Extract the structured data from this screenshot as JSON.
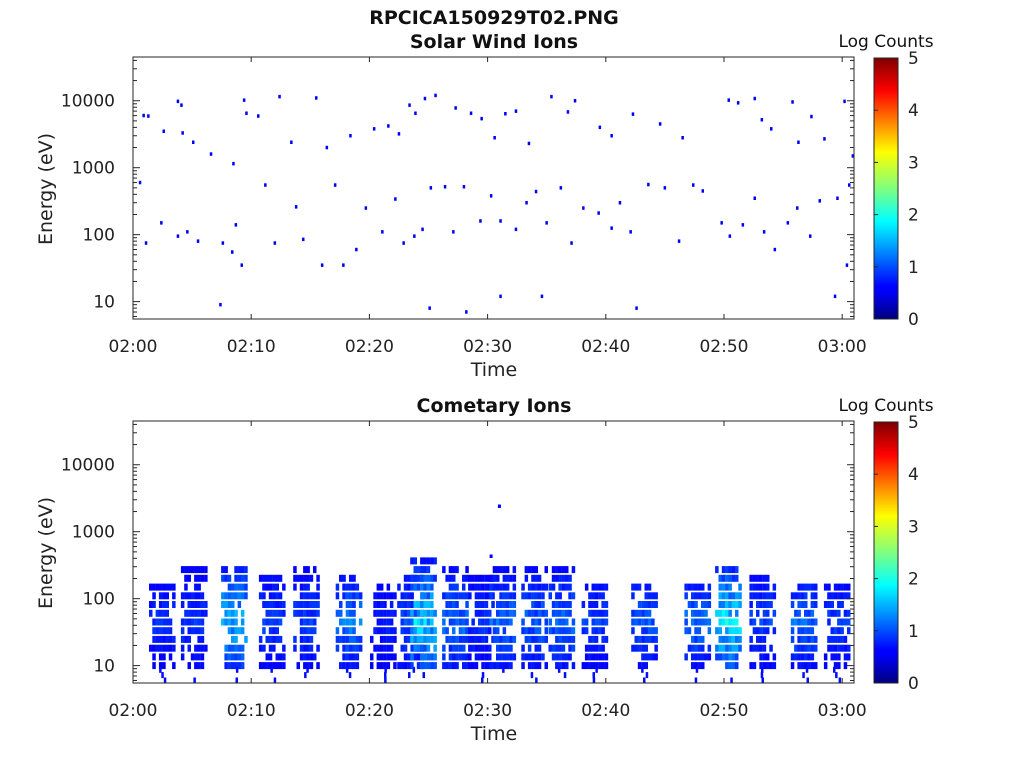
{
  "figure": {
    "filename_title": "RPCICA150929T02.PNG"
  },
  "chart_data": [
    {
      "type": "heatmap",
      "title": "Solar Wind Ions",
      "xlabel": "Time",
      "ylabel": "Energy (eV)",
      "x_ticks": [
        "02:00",
        "02:10",
        "02:20",
        "02:30",
        "02:40",
        "02:50",
        "03:00"
      ],
      "x_range_minutes": [
        0,
        61
      ],
      "y_scale": "log",
      "y_ticks": [
        "10",
        "100",
        "1000",
        "10000"
      ],
      "y_range": [
        5.5,
        45000
      ],
      "colorbar": {
        "label": "Log Counts",
        "range": [
          0,
          5
        ],
        "ticks": [
          "0",
          "1",
          "2",
          "3",
          "4",
          "5"
        ],
        "colormap": "jet"
      },
      "points": [
        [
          0.6,
          600,
          0.2
        ],
        [
          0.9,
          6000,
          0.1
        ],
        [
          1.3,
          5900,
          0.1
        ],
        [
          2.6,
          3500,
          0.1
        ],
        [
          3.8,
          9800,
          0.1
        ],
        [
          4.1,
          8600,
          0.1
        ],
        [
          4.2,
          3300,
          0.1
        ],
        [
          5.1,
          2400,
          0.1
        ],
        [
          6.6,
          1600,
          0.1
        ],
        [
          9.4,
          10200,
          0.1
        ],
        [
          9.6,
          6500,
          0.1
        ],
        [
          8.5,
          1150,
          0.1
        ],
        [
          10.6,
          5900,
          0.1
        ],
        [
          12.4,
          11500,
          0.1
        ],
        [
          13.4,
          2400,
          0.1
        ],
        [
          15.5,
          11000,
          0.1
        ],
        [
          16.4,
          2000,
          0.1
        ],
        [
          18.4,
          3000,
          0.1
        ],
        [
          20.4,
          3800,
          0.1
        ],
        [
          21.6,
          4200,
          0.1
        ],
        [
          22.5,
          3200,
          0.1
        ],
        [
          23.4,
          8600,
          0.1
        ],
        [
          23.9,
          6500,
          0.1
        ],
        [
          24.7,
          10800,
          0.1
        ],
        [
          25.6,
          12000,
          0.1
        ],
        [
          27.3,
          7800,
          0.1
        ],
        [
          28.6,
          6500,
          0.1
        ],
        [
          29.5,
          5400,
          0.1
        ],
        [
          30.6,
          2800,
          0.1
        ],
        [
          31.5,
          6400,
          0.1
        ],
        [
          32.4,
          7000,
          0.1
        ],
        [
          33.5,
          2300,
          0.1
        ],
        [
          35.4,
          11500,
          0.1
        ],
        [
          36.8,
          6800,
          0.1
        ],
        [
          37.4,
          10000,
          0.1
        ],
        [
          39.5,
          4000,
          0.1
        ],
        [
          40.5,
          3000,
          0.1
        ],
        [
          42.3,
          6300,
          0.1
        ],
        [
          44.6,
          4500,
          0.1
        ],
        [
          46.5,
          2800,
          0.1
        ],
        [
          50.4,
          10200,
          0.1
        ],
        [
          51.2,
          9300,
          0.1
        ],
        [
          52.6,
          10800,
          0.1
        ],
        [
          53.2,
          5200,
          0.1
        ],
        [
          54.0,
          3800,
          0.1
        ],
        [
          55.8,
          9600,
          0.1
        ],
        [
          56.3,
          2400,
          0.1
        ],
        [
          57.4,
          5800,
          0.1
        ],
        [
          58.5,
          2700,
          0.1
        ],
        [
          60.2,
          9800,
          0.1
        ],
        [
          60.6,
          550,
          0.1
        ],
        [
          60.9,
          1500,
          0.1
        ],
        [
          2.4,
          150,
          0.1
        ],
        [
          1.1,
          75,
          0.1
        ],
        [
          3.8,
          95,
          0.1
        ],
        [
          4.6,
          110,
          0.1
        ],
        [
          5.5,
          80,
          0.1
        ],
        [
          7.6,
          75,
          0.1
        ],
        [
          8.4,
          55,
          0.1
        ],
        [
          8.7,
          140,
          0.1
        ],
        [
          9.2,
          35,
          0.1
        ],
        [
          11.2,
          550,
          0.1
        ],
        [
          12.0,
          75,
          0.1
        ],
        [
          13.8,
          260,
          0.1
        ],
        [
          14.4,
          85,
          0.1
        ],
        [
          16.0,
          35,
          0.1
        ],
        [
          17.1,
          550,
          0.1
        ],
        [
          17.8,
          35,
          0.1
        ],
        [
          18.9,
          60,
          0.1
        ],
        [
          19.7,
          250,
          0.1
        ],
        [
          21.1,
          110,
          0.1
        ],
        [
          22.2,
          340,
          0.1
        ],
        [
          22.9,
          75,
          0.1
        ],
        [
          23.8,
          95,
          0.1
        ],
        [
          24.5,
          120,
          0.1
        ],
        [
          25.2,
          500,
          0.1
        ],
        [
          26.4,
          520,
          0.1
        ],
        [
          27.1,
          110,
          0.1
        ],
        [
          28.0,
          520,
          0.1
        ],
        [
          29.4,
          160,
          0.1
        ],
        [
          30.3,
          380,
          0.1
        ],
        [
          31.1,
          160,
          0.1
        ],
        [
          32.4,
          120,
          0.1
        ],
        [
          33.3,
          300,
          0.1
        ],
        [
          34.1,
          440,
          0.1
        ],
        [
          35.0,
          150,
          0.1
        ],
        [
          36.2,
          500,
          0.1
        ],
        [
          37.1,
          75,
          0.1
        ],
        [
          38.1,
          250,
          0.1
        ],
        [
          39.4,
          210,
          0.1
        ],
        [
          40.5,
          125,
          0.1
        ],
        [
          41.2,
          300,
          0.1
        ],
        [
          42.1,
          110,
          0.1
        ],
        [
          43.6,
          560,
          0.1
        ],
        [
          45.0,
          500,
          0.1
        ],
        [
          46.2,
          80,
          0.1
        ],
        [
          47.4,
          550,
          0.1
        ],
        [
          48.2,
          450,
          0.1
        ],
        [
          49.8,
          150,
          0.1
        ],
        [
          50.5,
          95,
          0.1
        ],
        [
          51.6,
          140,
          0.1
        ],
        [
          52.6,
          350,
          0.1
        ],
        [
          53.4,
          110,
          0.1
        ],
        [
          54.3,
          60,
          0.1
        ],
        [
          55.4,
          150,
          0.1
        ],
        [
          56.2,
          250,
          0.1
        ],
        [
          57.3,
          95,
          0.1
        ],
        [
          58.1,
          320,
          0.1
        ],
        [
          59.6,
          350,
          0.1
        ],
        [
          60.4,
          35,
          0.1
        ],
        [
          59.4,
          12,
          0.1
        ],
        [
          28.2,
          7,
          0.1
        ],
        [
          7.4,
          9,
          0.1
        ],
        [
          25.1,
          8,
          0.1
        ],
        [
          42.6,
          8,
          0.1
        ],
        [
          31.1,
          12,
          0.1
        ],
        [
          34.6,
          12,
          0.1
        ]
      ]
    },
    {
      "type": "heatmap",
      "title": "Cometary Ions",
      "xlabel": "Time",
      "ylabel": "Energy (eV)",
      "x_ticks": [
        "02:00",
        "02:10",
        "02:20",
        "02:30",
        "02:40",
        "02:50",
        "03:00"
      ],
      "x_range_minutes": [
        0,
        61
      ],
      "y_scale": "log",
      "y_ticks": [
        "10",
        "100",
        "1000",
        "10000"
      ],
      "y_range": [
        5.5,
        45000
      ],
      "colorbar": {
        "label": "Log Counts",
        "range": [
          0,
          5
        ],
        "ticks": [
          "0",
          "1",
          "2",
          "3",
          "4",
          "5"
        ],
        "colormap": "jet"
      },
      "bursts": [
        {
          "t": 2.5,
          "peak": 0.5,
          "top": 150
        },
        {
          "t": 5.2,
          "peak": 0.5,
          "top": 320
        },
        {
          "t": 8.6,
          "peak": 1.4,
          "top": 320
        },
        {
          "t": 11.8,
          "peak": 0.6,
          "top": 250
        },
        {
          "t": 14.7,
          "peak": 0.6,
          "top": 300
        },
        {
          "t": 18.3,
          "peak": 1.0,
          "top": 210
        },
        {
          "t": 21.2,
          "peak": 0.4,
          "top": 180
        },
        {
          "t": 23.5,
          "peak": 0.7,
          "top": 250
        },
        {
          "t": 24.6,
          "peak": 1.6,
          "top": 420
        },
        {
          "t": 27.3,
          "peak": 0.9,
          "top": 320
        },
        {
          "t": 29.5,
          "peak": 0.5,
          "top": 250
        },
        {
          "t": 31.3,
          "peak": 0.9,
          "top": 280
        },
        {
          "t": 34.0,
          "peak": 0.8,
          "top": 280
        },
        {
          "t": 36.3,
          "peak": 0.9,
          "top": 290
        },
        {
          "t": 39.1,
          "peak": 0.6,
          "top": 200
        },
        {
          "t": 43.3,
          "peak": 0.8,
          "top": 190
        },
        {
          "t": 47.8,
          "peak": 1.0,
          "top": 150
        },
        {
          "t": 50.4,
          "peak": 1.8,
          "top": 300
        },
        {
          "t": 53.3,
          "peak": 0.6,
          "top": 270
        },
        {
          "t": 56.8,
          "peak": 0.9,
          "top": 190
        },
        {
          "t": 59.6,
          "peak": 0.6,
          "top": 190
        }
      ],
      "outliers": [
        [
          31.0,
          2400,
          0.1
        ],
        [
          30.3,
          430,
          0.1
        ]
      ]
    }
  ]
}
